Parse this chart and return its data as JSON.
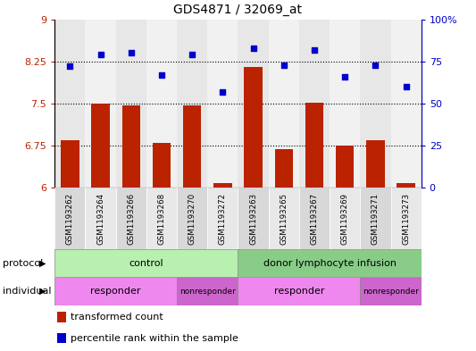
{
  "title": "GDS4871 / 32069_at",
  "samples": [
    "GSM1193262",
    "GSM1193264",
    "GSM1193266",
    "GSM1193268",
    "GSM1193270",
    "GSM1193272",
    "GSM1193263",
    "GSM1193265",
    "GSM1193267",
    "GSM1193269",
    "GSM1193271",
    "GSM1193273"
  ],
  "bar_values": [
    6.85,
    7.5,
    7.47,
    6.8,
    7.47,
    6.08,
    8.15,
    6.68,
    7.52,
    6.75,
    6.85,
    6.08
  ],
  "scatter_values": [
    72,
    79,
    80,
    67,
    79,
    57,
    83,
    73,
    82,
    66,
    73,
    60
  ],
  "bar_color": "#bb2200",
  "scatter_color": "#0000cc",
  "ylim_left": [
    6,
    9
  ],
  "ylim_right": [
    0,
    100
  ],
  "yticks_left": [
    6,
    6.75,
    7.5,
    8.25,
    9
  ],
  "yticks_right": [
    0,
    25,
    50,
    75,
    100
  ],
  "ytick_labels_left": [
    "6",
    "6.75",
    "7.5",
    "8.25",
    "9"
  ],
  "ytick_labels_right": [
    "0",
    "25",
    "50",
    "75",
    "100%"
  ],
  "hlines": [
    6.75,
    7.5,
    8.25
  ],
  "protocol_labels": [
    "control",
    "donor lymphocyte infusion"
  ],
  "protocol_color1": "#b8f0b0",
  "protocol_color2": "#88cc88",
  "individual_labels": [
    "responder",
    "nonresponder",
    "responder",
    "nonresponder"
  ],
  "individual_color1": "#ee88ee",
  "individual_color2": "#cc66cc",
  "legend_bar_label": "transformed count",
  "legend_scatter_label": "percentile rank within the sample",
  "cell_bg_odd": "#d8d8d8",
  "cell_bg_even": "#e8e8e8"
}
